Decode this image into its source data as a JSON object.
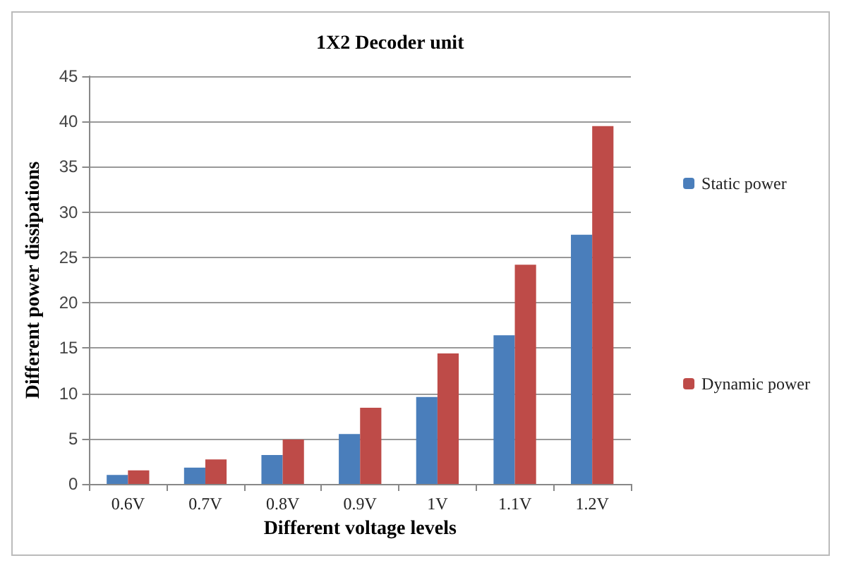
{
  "chart_data": {
    "type": "bar",
    "title": "1X2 Decoder unit",
    "xlabel": "Different voltage levels",
    "ylabel": "Different power dissipations",
    "categories": [
      "0.6V",
      "0.7V",
      "0.8V",
      "0.9V",
      "1V",
      "1.1V",
      "1.2V"
    ],
    "series": [
      {
        "name": "Static power",
        "color": "#4a7ebb",
        "values": [
          1,
          1.8,
          3.2,
          5.5,
          9.6,
          16.4,
          27.5
        ]
      },
      {
        "name": "Dynamic power",
        "color": "#be4b48",
        "values": [
          1.5,
          2.7,
          4.9,
          8.4,
          14.4,
          24.2,
          39.5
        ]
      }
    ],
    "ylim": [
      0,
      45
    ],
    "yticks": [
      0,
      5,
      10,
      15,
      20,
      25,
      30,
      35,
      40,
      45
    ],
    "grid": "y",
    "legend": "right"
  }
}
